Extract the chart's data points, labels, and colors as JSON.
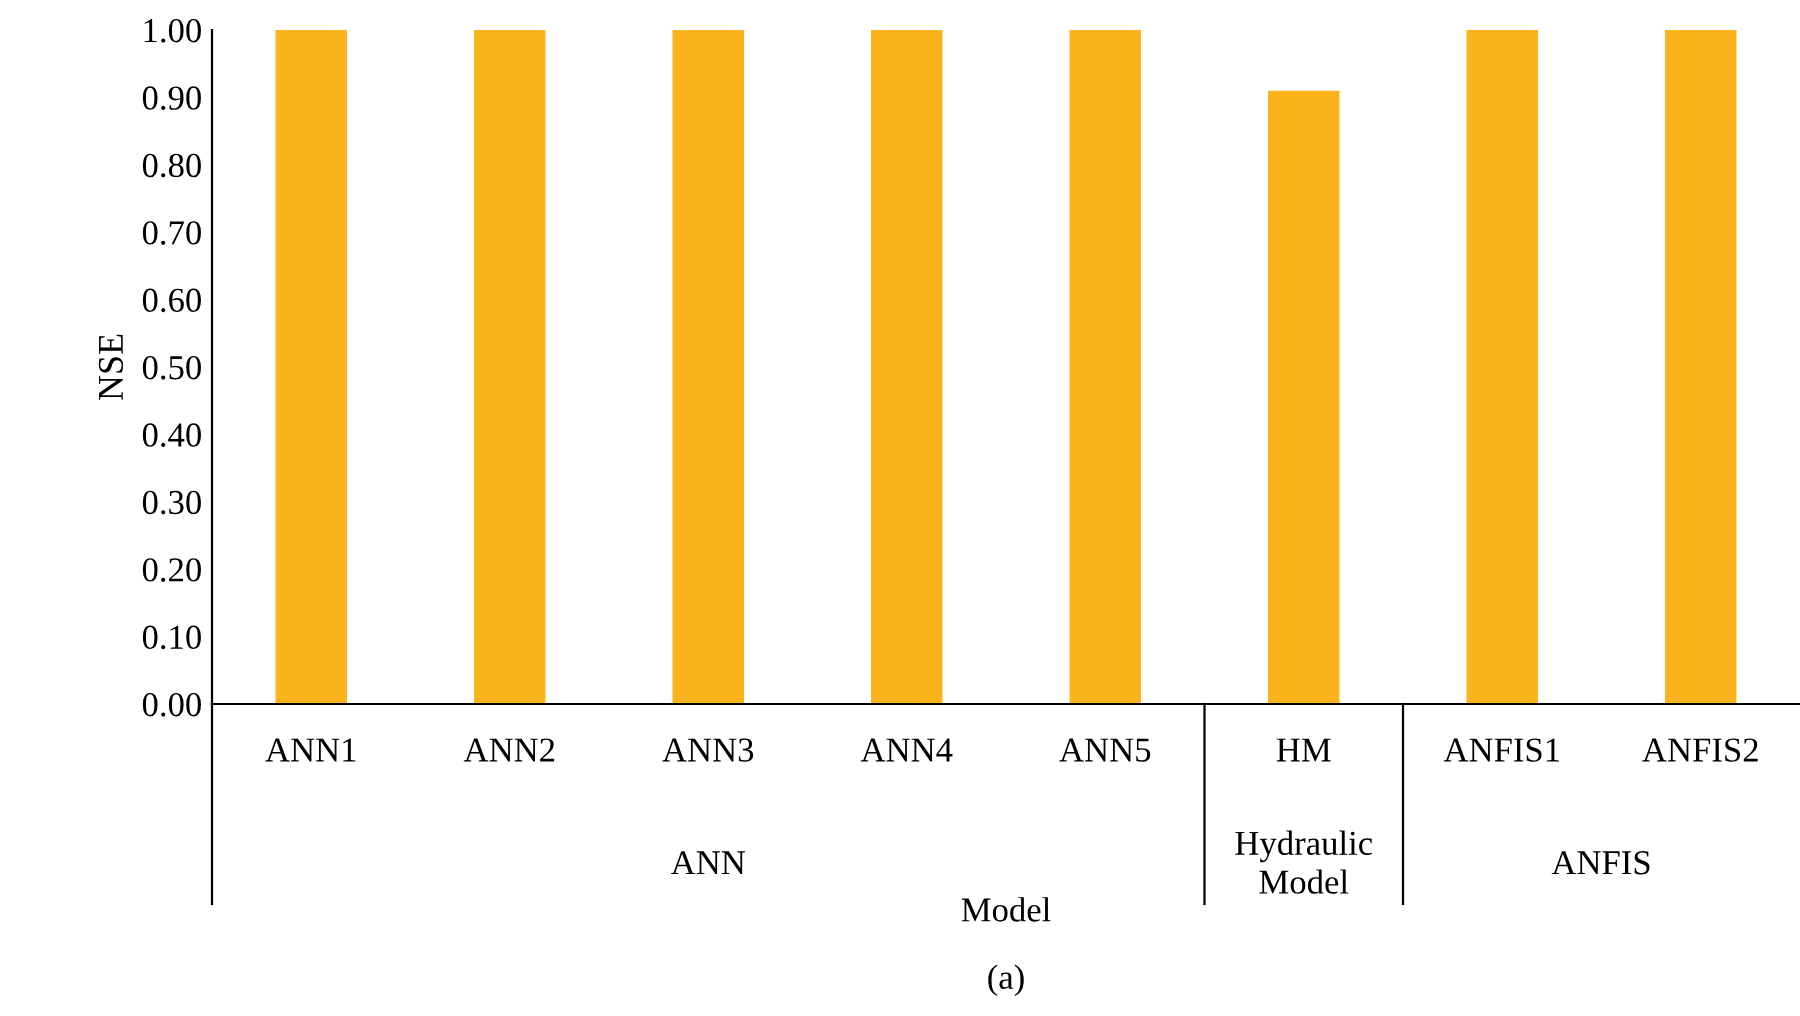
{
  "chart_data": {
    "type": "bar",
    "ylabel": "NSE",
    "xlabel": "Model",
    "categories": [
      "ANN1",
      "ANN2",
      "ANN3",
      "ANN4",
      "ANN5",
      "HM",
      "ANFIS1",
      "ANFIS2"
    ],
    "values": [
      1.0,
      1.0,
      1.0,
      1.0,
      1.0,
      0.91,
      1.0,
      1.0
    ],
    "color": "#fbb31c",
    "ylim": [
      0,
      1.0
    ],
    "yticks": [
      {
        "value": 0,
        "label": "0.00"
      },
      {
        "value": 0.1,
        "label": "0.10"
      },
      {
        "value": 0.2,
        "label": "0.20"
      },
      {
        "value": 0.3,
        "label": "0.30"
      },
      {
        "value": 0.4,
        "label": "0.40"
      },
      {
        "value": 0.5,
        "label": "0.50"
      },
      {
        "value": 0.6,
        "label": "0.60"
      },
      {
        "value": 0.7,
        "label": "0.70"
      },
      {
        "value": 0.8,
        "label": "0.80"
      },
      {
        "value": 0.9,
        "label": "0.90"
      },
      {
        "value": 1.0,
        "label": "1.00"
      }
    ],
    "grid": false,
    "annotations": [
      "ANN",
      "Hydraulic\nModel",
      "ANFIS",
      "(a)"
    ]
  }
}
